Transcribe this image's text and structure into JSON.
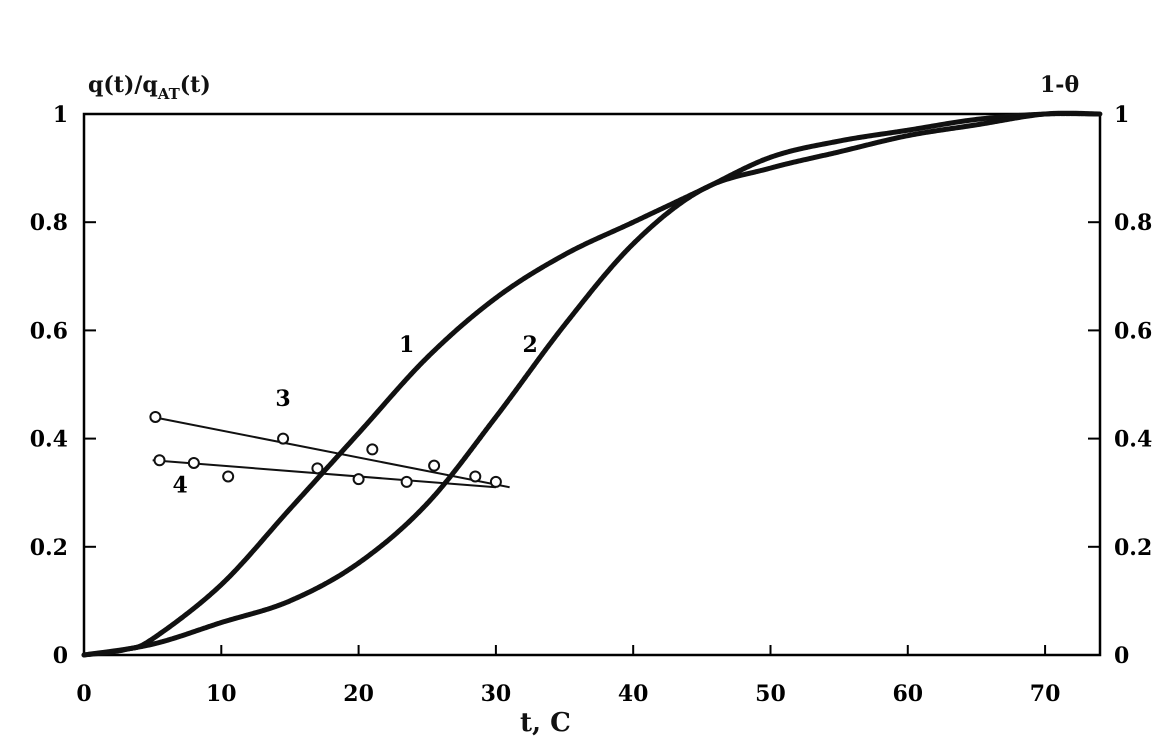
{
  "chart_data": {
    "type": "line",
    "title": "",
    "xlabel": "t, C",
    "ylabel_left": "q(t)/q_AT(t)",
    "ylabel_right": "1-θ",
    "xlim": [
      0,
      74
    ],
    "ylim": [
      0,
      1
    ],
    "x_ticks": [
      0,
      10,
      20,
      30,
      40,
      50,
      60,
      70
    ],
    "x_tick_labels": [
      "0",
      "10",
      "20",
      "30",
      "40",
      "50",
      "60",
      "70"
    ],
    "y_ticks": [
      0,
      0.2,
      0.4,
      0.6,
      0.8,
      1
    ],
    "y_tick_labels_left": [
      "0",
      "0.2",
      "0.4",
      "0.6",
      "0.8",
      "1"
    ],
    "y_tick_labels_right": [
      "0",
      "0.2",
      "0.4",
      "0.6",
      "0.8",
      "1"
    ],
    "grid": false,
    "legend": "inline curve numbers",
    "series": [
      {
        "name": "1",
        "style": "thick-line",
        "x": [
          0,
          3,
          5,
          10,
          15,
          20,
          25,
          30,
          35,
          40,
          45,
          50,
          55,
          60,
          65,
          70,
          74
        ],
        "y": [
          0,
          0.01,
          0.03,
          0.13,
          0.27,
          0.41,
          0.55,
          0.66,
          0.74,
          0.8,
          0.86,
          0.92,
          0.95,
          0.97,
          0.99,
          1.0,
          1.0
        ]
      },
      {
        "name": "2",
        "style": "thick-line",
        "x": [
          0,
          5,
          10,
          15,
          20,
          25,
          30,
          35,
          40,
          45,
          50,
          55,
          60,
          65,
          70,
          74
        ],
        "y": [
          0,
          0.02,
          0.06,
          0.1,
          0.17,
          0.28,
          0.44,
          0.61,
          0.76,
          0.86,
          0.9,
          0.93,
          0.96,
          0.98,
          1.0,
          1.0
        ]
      },
      {
        "name": "3",
        "style": "markers-with-fit",
        "x": [
          5.2,
          14.5,
          21,
          25.5,
          28.5,
          30
        ],
        "y": [
          0.44,
          0.4,
          0.38,
          0.35,
          0.33,
          0.32
        ],
        "fit": {
          "x": [
            5,
            31
          ],
          "y": [
            0.44,
            0.31
          ]
        }
      },
      {
        "name": "4",
        "style": "markers-with-fit",
        "x": [
          5.5,
          8,
          10.5,
          17,
          20,
          23.5
        ],
        "y": [
          0.36,
          0.355,
          0.33,
          0.345,
          0.325,
          0.32
        ],
        "fit": {
          "x": [
            5,
            30
          ],
          "y": [
            0.36,
            0.31
          ]
        }
      }
    ],
    "annotations": [
      {
        "text": "1",
        "x": 23.5,
        "y": 0.56
      },
      {
        "text": "2",
        "x": 32.5,
        "y": 0.56
      },
      {
        "text": "3",
        "x": 14.5,
        "y": 0.46
      },
      {
        "text": "4",
        "x": 7,
        "y": 0.3
      }
    ]
  },
  "labels": {
    "ylabel_left": "q(t)/q",
    "ylabel_left_sub": "AT",
    "ylabel_left_tail": "(t)",
    "ylabel_right": "1-θ",
    "xlabel": "t, C"
  }
}
